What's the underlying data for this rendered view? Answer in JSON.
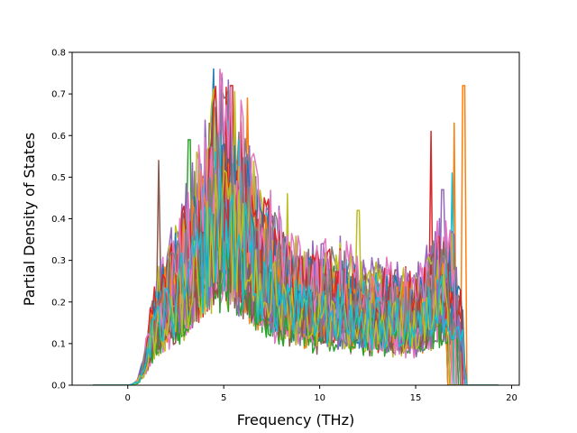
{
  "chart_data": {
    "type": "line",
    "title": "",
    "xlabel": "Frequency (THz)",
    "ylabel": "Partial Density of States",
    "xlim": [
      -2.9,
      20.4
    ],
    "ylim": [
      0,
      0.8
    ],
    "x_ticks": [
      0,
      5,
      10,
      15,
      20
    ],
    "y_ticks": [
      0.0,
      0.1,
      0.2,
      0.3,
      0.4,
      0.5,
      0.6,
      0.7,
      0.8
    ],
    "x_tick_labels": [
      "0",
      "5",
      "10",
      "15",
      "20"
    ],
    "y_tick_labels": [
      "0.0",
      "0.1",
      "0.2",
      "0.3",
      "0.4",
      "0.5",
      "0.6",
      "0.7",
      "0.8"
    ],
    "grid": false,
    "legend": "none",
    "series_count": 40,
    "colors": [
      "#1f77b4",
      "#ff7f0e",
      "#2ca02c",
      "#d62728",
      "#9467bd",
      "#8c564b",
      "#e377c2",
      "#7f7f7f",
      "#bcbd22",
      "#17becf"
    ],
    "x_range_data": [
      -1.8,
      19.4
    ],
    "envelope": {
      "x": [
        -1.8,
        0.0,
        0.5,
        1.0,
        1.5,
        2.0,
        2.5,
        3.0,
        3.5,
        4.0,
        4.5,
        5.0,
        5.5,
        6.0,
        6.5,
        7.0,
        7.5,
        8.0,
        9.0,
        10.0,
        11.0,
        12.0,
        13.0,
        14.0,
        15.0,
        15.5,
        16.0,
        16.5,
        17.0,
        17.3,
        17.5,
        17.6,
        17.7,
        19.4
      ],
      "y": [
        0.0,
        0.0,
        0.02,
        0.09,
        0.16,
        0.2,
        0.23,
        0.27,
        0.31,
        0.36,
        0.42,
        0.44,
        0.41,
        0.37,
        0.32,
        0.28,
        0.26,
        0.23,
        0.2,
        0.19,
        0.2,
        0.18,
        0.17,
        0.17,
        0.16,
        0.18,
        0.22,
        0.23,
        0.2,
        0.17,
        0.12,
        0.0,
        0.0,
        0.0
      ]
    },
    "peaks": [
      {
        "x": 4.5,
        "y": 0.76,
        "series": 0
      },
      {
        "x": 4.9,
        "y": 0.75,
        "series": 6
      },
      {
        "x": 5.4,
        "y": 0.72,
        "series": 3
      },
      {
        "x": 6.2,
        "y": 0.69,
        "series": 1
      },
      {
        "x": 5.9,
        "y": 0.66,
        "series": 8
      },
      {
        "x": 3.2,
        "y": 0.59,
        "series": 2
      },
      {
        "x": 1.6,
        "y": 0.54,
        "series": 5
      },
      {
        "x": 15.8,
        "y": 0.61,
        "series": 3
      },
      {
        "x": 17.0,
        "y": 0.63,
        "series": 1
      },
      {
        "x": 17.5,
        "y": 0.72,
        "series": 1
      },
      {
        "x": 16.9,
        "y": 0.51,
        "series": 9
      },
      {
        "x": 16.4,
        "y": 0.47,
        "series": 4
      },
      {
        "x": 8.3,
        "y": 0.46,
        "series": 8
      },
      {
        "x": 12.0,
        "y": 0.42,
        "series": 8
      }
    ]
  }
}
